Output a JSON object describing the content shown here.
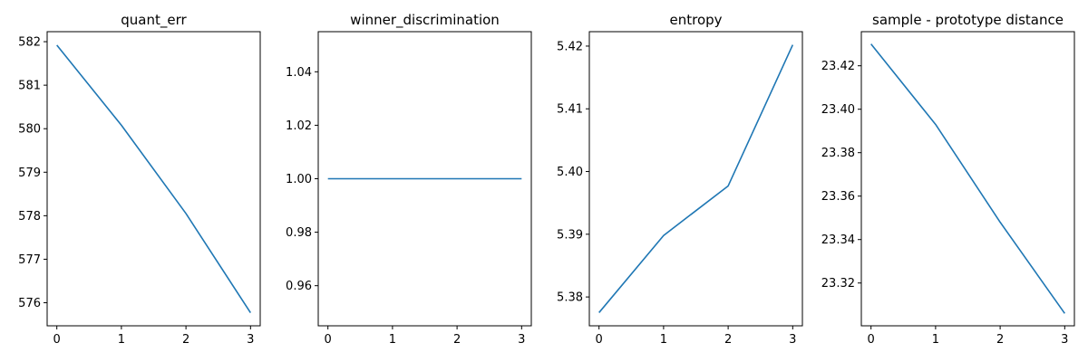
{
  "colors": {
    "line": "#1f77b4",
    "axis": "#000000",
    "background": "#ffffff"
  },
  "chart_data": [
    {
      "type": "line",
      "title": "quant_err",
      "x": [
        0,
        1,
        2,
        3
      ],
      "values": [
        581.92,
        580.08,
        578.05,
        575.77
      ],
      "xlim": [
        -0.15,
        3.15
      ],
      "ylim": [
        575.47,
        582.23
      ],
      "xticks": [
        "0",
        "1",
        "2",
        "3"
      ],
      "yticks": [
        576,
        577,
        578,
        579,
        580,
        581,
        582
      ],
      "ytick_labels": [
        "576",
        "577",
        "578",
        "579",
        "580",
        "581",
        "582"
      ],
      "grid": false
    },
    {
      "type": "line",
      "title": "winner_discrimination",
      "x": [
        0,
        1,
        2,
        3
      ],
      "values": [
        1.0,
        1.0,
        1.0,
        1.0
      ],
      "xlim": [
        -0.15,
        3.15
      ],
      "ylim": [
        0.945,
        1.055
      ],
      "xticks": [
        "0",
        "1",
        "2",
        "3"
      ],
      "yticks": [
        0.96,
        0.98,
        1.0,
        1.02,
        1.04
      ],
      "ytick_labels": [
        "0.96",
        "0.98",
        "1.00",
        "1.02",
        "1.04"
      ],
      "grid": false
    },
    {
      "type": "line",
      "title": "entropy",
      "x": [
        0,
        1,
        2,
        3
      ],
      "values": [
        5.3775,
        5.3898,
        5.3977,
        5.4202
      ],
      "xlim": [
        -0.15,
        3.15
      ],
      "ylim": [
        5.3754,
        5.4223
      ],
      "xticks": [
        "0",
        "1",
        "2",
        "3"
      ],
      "yticks": [
        5.38,
        5.39,
        5.4,
        5.41,
        5.42
      ],
      "ytick_labels": [
        "5.38",
        "5.39",
        "5.40",
        "5.41",
        "5.42"
      ],
      "grid": false
    },
    {
      "type": "line",
      "title": "sample - prototype distance",
      "x": [
        0,
        1,
        2,
        3
      ],
      "values": [
        23.43,
        23.393,
        23.348,
        23.306
      ],
      "xlim": [
        -0.15,
        3.15
      ],
      "ylim": [
        23.3003,
        23.4357
      ],
      "xticks": [
        "0",
        "1",
        "2",
        "3"
      ],
      "yticks": [
        23.32,
        23.34,
        23.36,
        23.38,
        23.4,
        23.42
      ],
      "ytick_labels": [
        "23.32",
        "23.34",
        "23.36",
        "23.38",
        "23.40",
        "23.42"
      ],
      "grid": false
    }
  ]
}
